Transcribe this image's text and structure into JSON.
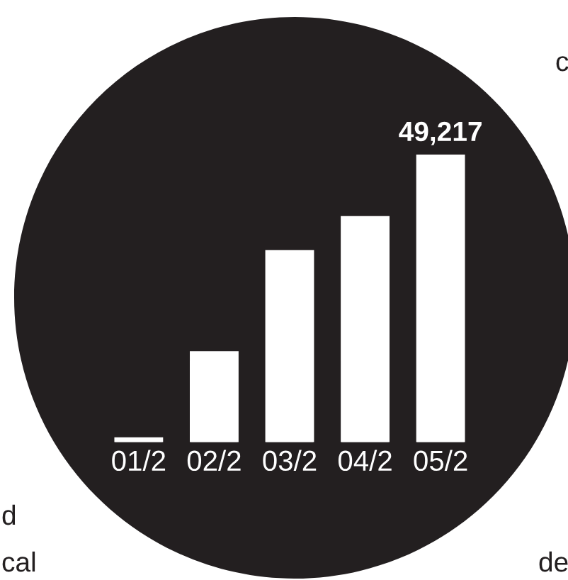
{
  "chart_data": {
    "type": "bar",
    "categories": [
      "01/2",
      "02/2",
      "03/2",
      "04/2",
      "05/2"
    ],
    "values": [
      650,
      15390,
      32700,
      38530,
      49217
    ],
    "value_labels": [
      null,
      null,
      null,
      null,
      "49,217"
    ],
    "color": "#ffffff",
    "ylim": [
      0,
      49217
    ],
    "tick_labels": "x",
    "grid": false,
    "legend": false,
    "annotations": [
      "c",
      "d",
      "cal",
      "de"
    ]
  }
}
